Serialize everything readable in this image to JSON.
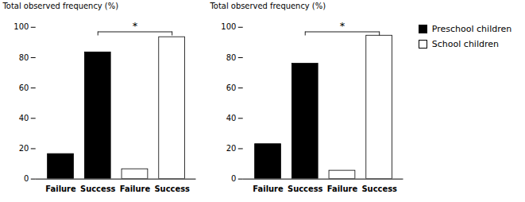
{
  "chart_data": [
    {
      "type": "bar",
      "categories": [
        "Failure",
        "Success",
        "Failure",
        "Success"
      ],
      "series": [
        {
          "name": "Preschool children",
          "color": "#000000",
          "values": [
            16.5,
            83.5,
            null,
            null
          ]
        },
        {
          "name": "School children",
          "color": "#ffffff",
          "values": [
            null,
            null,
            6.5,
            93.5
          ]
        }
      ],
      "ylabel": "Total observed frequency (%)",
      "ylim": [
        0,
        100
      ],
      "yticks": [
        0,
        20,
        40,
        60,
        80,
        100
      ],
      "annotations": [
        {
          "text": "*",
          "x": [
            1,
            3
          ],
          "y": 97
        }
      ],
      "legend": false
    },
    {
      "type": "bar",
      "categories": [
        "Failure",
        "Success",
        "Failure",
        "Success"
      ],
      "series": [
        {
          "name": "Preschool children",
          "color": "#000000",
          "values": [
            23.0,
            76.0,
            null,
            null
          ]
        },
        {
          "name": "School children",
          "color": "#ffffff",
          "values": [
            null,
            null,
            5.5,
            94.5
          ]
        }
      ],
      "ylabel": "Total observed frequency (%)",
      "ylim": [
        0,
        100
      ],
      "yticks": [
        0,
        20,
        40,
        60,
        80,
        100
      ],
      "annotations": [
        {
          "text": "*",
          "x": [
            1,
            3
          ],
          "y": 97
        }
      ],
      "legend": "right"
    }
  ]
}
